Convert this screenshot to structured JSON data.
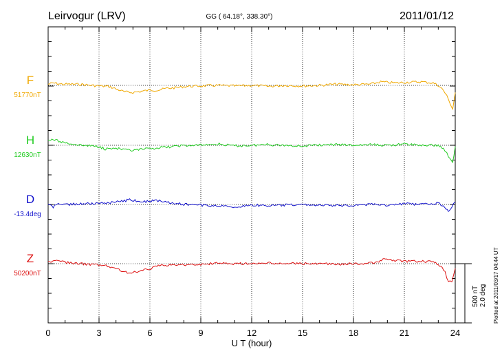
{
  "header": {
    "station": "Leirvogur (LRV)",
    "coords": "GG ( 64.18°, 338.30°)",
    "date": "2011/01/12"
  },
  "footer": {
    "plotted": "Plotted at 2011/03/17 04:44 UT"
  },
  "chart_data": {
    "type": "line",
    "title": "Leirvogur (LRV)",
    "xlabel": "U T (hour)",
    "xlim": [
      0,
      24
    ],
    "xticks": [
      "0",
      "3",
      "6",
      "9",
      "12",
      "15",
      "18",
      "21",
      "24"
    ],
    "grid": "dotted vertical every 3 hours",
    "scale_bar": {
      "nt": "500 nT",
      "deg": "2.0 deg"
    },
    "series": [
      {
        "name": "F",
        "baseline": "51770nT",
        "color": "#f0a800",
        "x": [
          0,
          0.3,
          0.8,
          1.5,
          2,
          2.5,
          3,
          3.6,
          4,
          4.5,
          5,
          5.5,
          6,
          6.5,
          7,
          7.5,
          8,
          9,
          10,
          11,
          12,
          13,
          14,
          15,
          16,
          17,
          18,
          19,
          19.6,
          20,
          20.5,
          21,
          22,
          22.7,
          23,
          23.3,
          23.5,
          23.7,
          23.85,
          24
        ],
        "offset": [
          10,
          20,
          10,
          10,
          8,
          0,
          -5,
          -10,
          -30,
          -55,
          -60,
          -50,
          -40,
          -40,
          -25,
          -20,
          -10,
          -5,
          0,
          -5,
          0,
          -8,
          0,
          -5,
          0,
          10,
          5,
          10,
          30,
          25,
          20,
          25,
          30,
          20,
          0,
          -40,
          -90,
          -150,
          -200,
          -60
        ]
      },
      {
        "name": "H",
        "baseline": "12630nT",
        "color": "#22cc22",
        "x": [
          0,
          0.3,
          0.7,
          1.5,
          2,
          3,
          3.3,
          4,
          4.5,
          5,
          5.5,
          6,
          6.5,
          7,
          8,
          9,
          10,
          11,
          12,
          13,
          14,
          15,
          16,
          17,
          18,
          19,
          20,
          21,
          22,
          23,
          23.3,
          23.5,
          23.7,
          23.85,
          24
        ],
        "offset": [
          40,
          50,
          30,
          10,
          0,
          -10,
          -30,
          -25,
          -40,
          -45,
          -35,
          -30,
          -20,
          -15,
          -5,
          0,
          10,
          -5,
          0,
          5,
          0,
          -5,
          0,
          5,
          0,
          5,
          0,
          10,
          0,
          0,
          -30,
          -60,
          -120,
          -150,
          -10
        ]
      },
      {
        "name": "D",
        "baseline": "-13.4deg",
        "color": "#1111cc",
        "x": [
          0,
          0.3,
          0.6,
          1,
          2,
          3,
          3.5,
          4,
          4.5,
          4.8,
          5.2,
          6,
          6.3,
          7,
          7.5,
          8,
          9,
          10,
          11,
          12,
          13,
          14,
          15,
          16,
          17,
          18,
          19,
          20,
          21,
          22,
          22.5,
          23,
          23.3,
          23.6,
          23.8,
          24
        ],
        "offset": [
          0,
          -20,
          0,
          0,
          5,
          10,
          15,
          20,
          30,
          40,
          30,
          25,
          35,
          20,
          10,
          0,
          -5,
          -10,
          -20,
          -5,
          -10,
          -5,
          0,
          -5,
          -10,
          -5,
          0,
          -5,
          5,
          0,
          5,
          10,
          -10,
          -50,
          -20,
          20
        ]
      },
      {
        "name": "Z",
        "baseline": "50200nT",
        "color": "#dd1111",
        "x": [
          0,
          0.5,
          1,
          2,
          2.8,
          3.5,
          4,
          4.5,
          5,
          5.5,
          6,
          6.5,
          7,
          8,
          9,
          10,
          11,
          12,
          13,
          14,
          15,
          16,
          17,
          18,
          19,
          19.5,
          19.8,
          20.2,
          20.7,
          21,
          22,
          22.7,
          23,
          23.4,
          23.6,
          23.8,
          24
        ],
        "offset": [
          10,
          25,
          10,
          0,
          -10,
          -20,
          -40,
          -70,
          -75,
          -60,
          -40,
          -20,
          -15,
          -10,
          -5,
          5,
          0,
          0,
          5,
          0,
          0,
          0,
          -5,
          0,
          5,
          15,
          45,
          30,
          25,
          20,
          20,
          15,
          -5,
          -70,
          -160,
          -150,
          -40
        ]
      }
    ]
  }
}
